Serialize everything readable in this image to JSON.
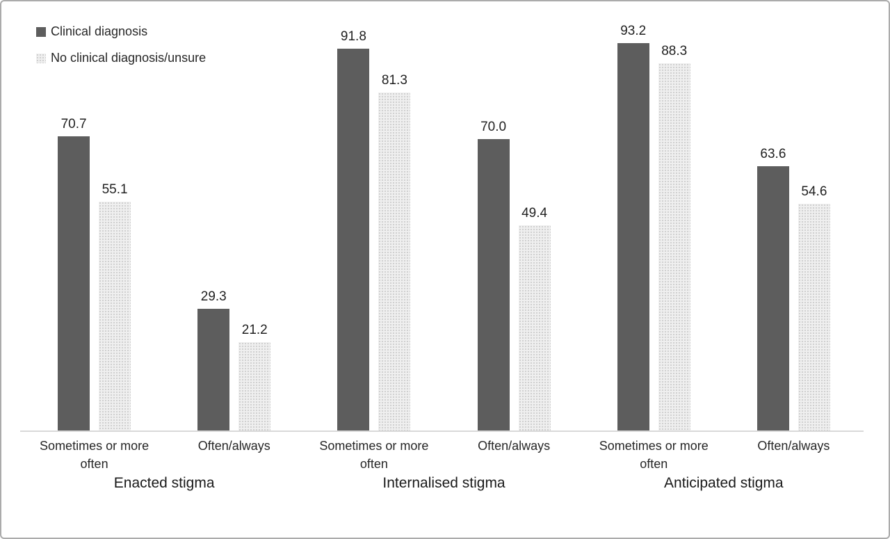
{
  "chart_data": {
    "type": "bar",
    "title": "",
    "xlabel": "",
    "ylabel": "",
    "ylim": [
      0,
      100
    ],
    "grid": false,
    "legend_position": "top-left",
    "series_names": [
      "Clinical diagnosis",
      "No clinical diagnosis/unsure"
    ],
    "legend": [
      {
        "name": "Clinical diagnosis",
        "color": "#5d5d5d",
        "pattern": "solid"
      },
      {
        "name": "No clinical diagnosis/unsure",
        "color": "#efefef",
        "pattern": "dotted"
      }
    ],
    "groups": [
      {
        "label": "Enacted stigma",
        "categories": [
          {
            "label": "Sometimes or more often",
            "values": [
              "70.7",
              "55.1"
            ]
          },
          {
            "label": "Often/always",
            "values": [
              "29.3",
              "21.2"
            ]
          }
        ]
      },
      {
        "label": "Internalised stigma",
        "categories": [
          {
            "label": "Sometimes or more often",
            "values": [
              "91.8",
              "81.3"
            ]
          },
          {
            "label": "Often/always",
            "values": [
              "70.0",
              "49.4"
            ]
          }
        ]
      },
      {
        "label": "Anticipated stigma",
        "categories": [
          {
            "label": "Sometimes or more often",
            "values": [
              "93.2",
              "88.3"
            ]
          },
          {
            "label": "Often/always",
            "values": [
              "63.6",
              "54.6"
            ]
          }
        ]
      }
    ]
  }
}
